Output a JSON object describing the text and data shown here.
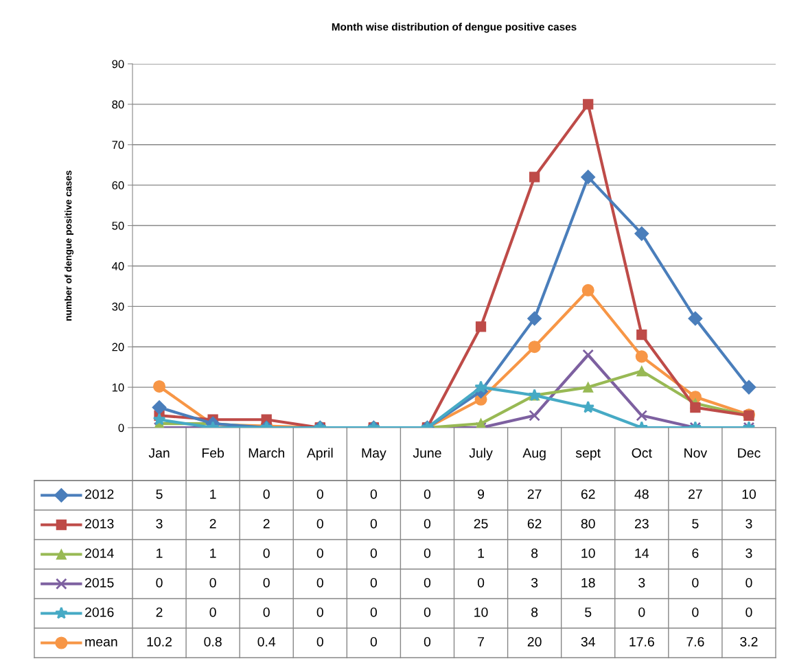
{
  "chart_data": {
    "type": "line",
    "title": "Month wise distribution of dengue positive cases",
    "ylabel": "number of dengue positive cases",
    "categories": [
      "Jan",
      "Feb",
      "March",
      "April",
      "May",
      "June",
      "July",
      "Aug",
      "sept",
      "Oct",
      "Nov",
      "Dec"
    ],
    "series": [
      {
        "name": "2012",
        "color": "#4a7ebb",
        "marker": "diamond",
        "values": [
          5,
          1,
          0,
          0,
          0,
          0,
          9,
          27,
          62,
          48,
          27,
          10
        ]
      },
      {
        "name": "2013",
        "color": "#be4b48",
        "marker": "square",
        "values": [
          3,
          2,
          2,
          0,
          0,
          0,
          25,
          62,
          80,
          23,
          5,
          3
        ]
      },
      {
        "name": "2014",
        "color": "#98b954",
        "marker": "triangle",
        "values": [
          1,
          1,
          0,
          0,
          0,
          0,
          1,
          8,
          10,
          14,
          6,
          3
        ]
      },
      {
        "name": "2015",
        "color": "#7d60a0",
        "marker": "cross",
        "values": [
          0,
          0,
          0,
          0,
          0,
          0,
          0,
          3,
          18,
          3,
          0,
          0
        ]
      },
      {
        "name": "2016",
        "color": "#46aac5",
        "marker": "star",
        "values": [
          2,
          0,
          0,
          0,
          0,
          0,
          10,
          8,
          5,
          0,
          0,
          0
        ]
      },
      {
        "name": "mean",
        "color": "#f79646",
        "marker": "circle",
        "values": [
          10.2,
          0.8,
          0.4,
          0,
          0,
          0,
          7,
          20,
          34,
          17.6,
          7.6,
          3.2
        ]
      }
    ],
    "ylim": [
      0,
      90
    ],
    "yticks": [
      0,
      10,
      20,
      30,
      40,
      50,
      60,
      70,
      80,
      90
    ],
    "grid": "y",
    "legend": "bottom",
    "data_labels": true
  }
}
